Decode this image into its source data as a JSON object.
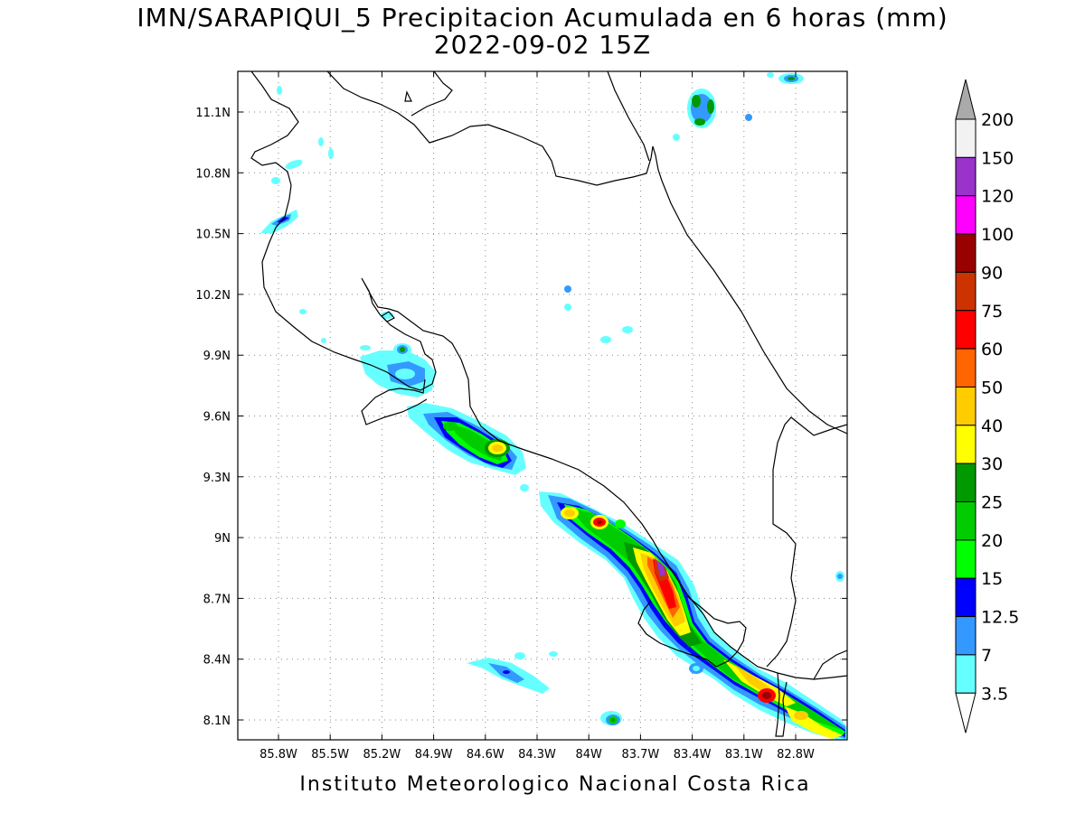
{
  "title": {
    "line1": "IMN/SARAPIQUI_5 Precipitacion Acumulada en 6 horas (mm)",
    "line2": "2022-09-02 15Z"
  },
  "footer": "Instituto Meteorologico Nacional Costa Rica",
  "axes": {
    "y_ticks": [
      "11.1N",
      "10.8N",
      "10.5N",
      "10.2N",
      "9.9N",
      "9.6N",
      "9.3N",
      "9N",
      "8.7N",
      "8.4N",
      "8.1N"
    ],
    "x_ticks": [
      "85.8W",
      "85.5W",
      "85.2W",
      "84.9W",
      "84.6W",
      "84.3W",
      "84W",
      "83.7W",
      "83.4W",
      "83.1W",
      "82.8W"
    ]
  },
  "colorbar": {
    "labels": [
      "200",
      "150",
      "120",
      "100",
      "90",
      "75",
      "60",
      "50",
      "40",
      "30",
      "25",
      "20",
      "15",
      "12.5",
      "7",
      "3.5"
    ],
    "colors": [
      "#aaaaaa",
      "#f2f2f2",
      "#9933cc",
      "#ff00ff",
      "#990000",
      "#cc3300",
      "#ff0000",
      "#ff6600",
      "#ffcc00",
      "#ffff00",
      "#009900",
      "#00cc00",
      "#00ff00",
      "#0000ff",
      "#3399ff",
      "#66ffff",
      "#ffffff"
    ]
  }
}
